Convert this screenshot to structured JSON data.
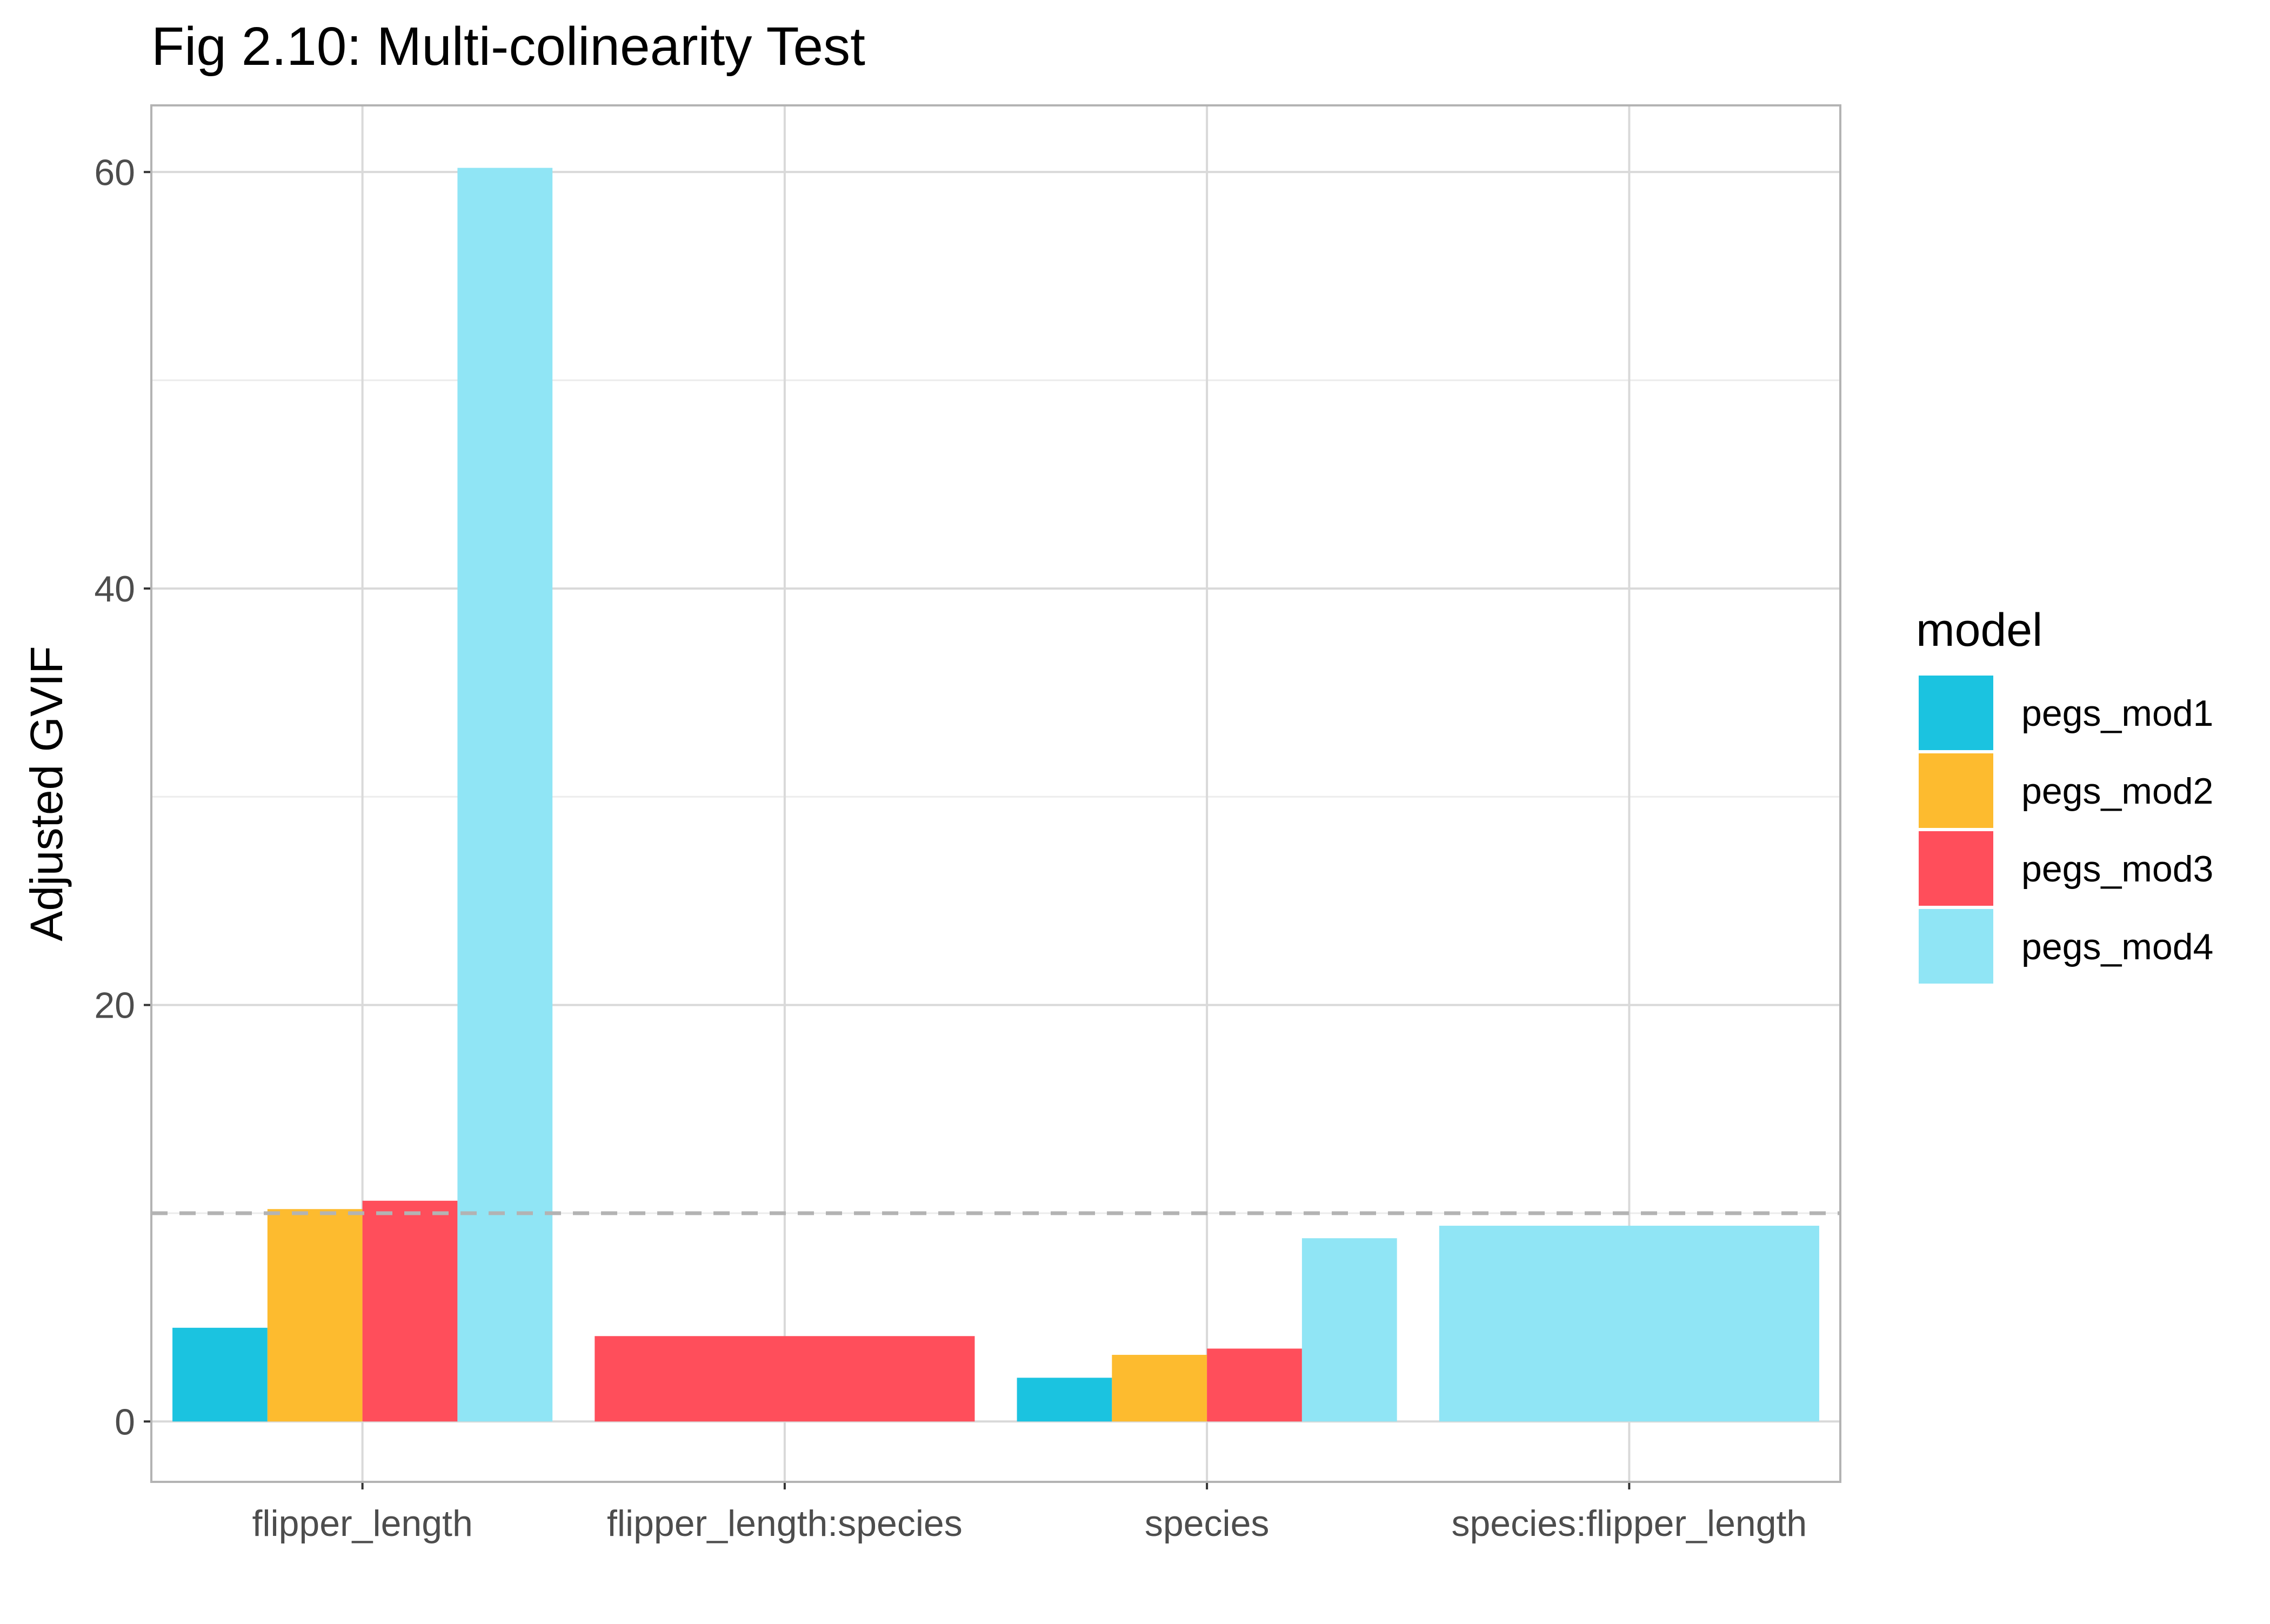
{
  "chart_data": {
    "type": "bar",
    "title": "Fig 2.10: Multi-colinearity Test",
    "xlabel": "",
    "ylabel": "Adjusted GVIF",
    "ylim": [
      -2.9,
      63.2
    ],
    "yticks": [
      0,
      20,
      40,
      60
    ],
    "grid": true,
    "reference_line": {
      "y": 10,
      "style": "dashed",
      "color": "#b3b3b3"
    },
    "categories": [
      "flipper_length",
      "flipper_length:species",
      "species",
      "species:flipper_length"
    ],
    "legend": {
      "title": "model",
      "placement": "right"
    },
    "series": [
      {
        "name": "pegs_mod1",
        "color": "#1BC3E0",
        "values": [
          4.5,
          null,
          2.1,
          null
        ]
      },
      {
        "name": "pegs_mod2",
        "color": "#FDBB2F",
        "values": [
          10.2,
          null,
          3.2,
          null
        ]
      },
      {
        "name": "pegs_mod3",
        "color": "#FF4E5B",
        "values": [
          10.6,
          4.1,
          3.5,
          null
        ]
      },
      {
        "name": "pegs_mod4",
        "color": "#90E5F5",
        "values": [
          60.2,
          null,
          8.8,
          9.4
        ]
      }
    ]
  }
}
